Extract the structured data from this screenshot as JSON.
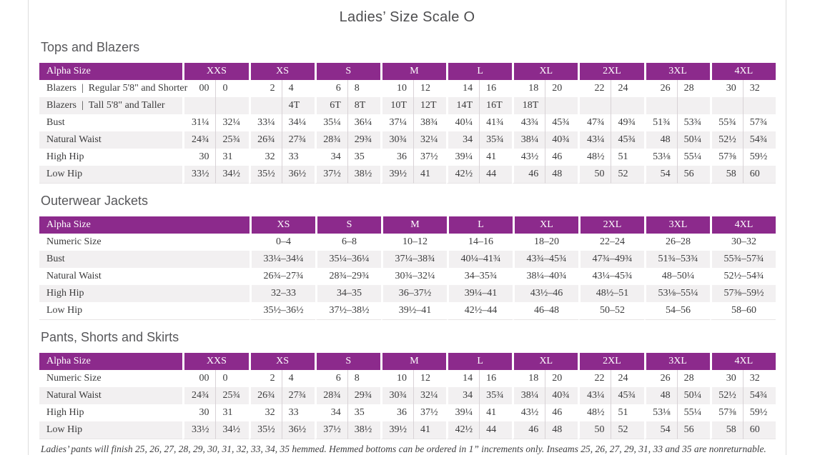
{
  "page": {
    "title": "Ladies’ Size Scale O",
    "footnote": "Ladies’ pants will finish 25, 26, 27, 28, 29, 30, 31, 32, 33, 34, 35 hemmed. Hemmed bottoms can be ordered in 1” increments only. Inseams 25, 26, 27, 29, 31, 33 and 35 are nonreturnable."
  },
  "colors": {
    "header_purple": "#8c2a8c",
    "alt_row_gray": "#f2f0f1"
  },
  "tables": [
    {
      "section": "Tops and Blazers",
      "header_label": "Alpha Size",
      "paired": true,
      "groups": [
        "XXS",
        "XS",
        "S",
        "M",
        "L",
        "XL",
        "2XL",
        "3XL",
        "4XL"
      ],
      "rows": [
        {
          "label": "Blazers | Regular 5'8\" and Shorter",
          "values": [
            "00",
            "0",
            "2",
            "4",
            "6",
            "8",
            "10",
            "12",
            "14",
            "16",
            "18",
            "20",
            "22",
            "24",
            "26",
            "28",
            "30",
            "32"
          ]
        },
        {
          "label": "Blazers | Tall 5'8\" and Taller",
          "values": [
            "",
            "",
            "",
            "4T",
            "6T",
            "8T",
            "10T",
            "12T",
            "14T",
            "16T",
            "18T",
            "",
            "",
            "",
            "",
            "",
            "",
            ""
          ]
        },
        {
          "label": "Bust",
          "values": [
            "31¼",
            "32¼",
            "33¼",
            "34¼",
            "35¼",
            "36¼",
            "37¼",
            "38¾",
            "40¼",
            "41¾",
            "43¾",
            "45¾",
            "47¾",
            "49¾",
            "51¾",
            "53¾",
            "55¾",
            "57¾"
          ]
        },
        {
          "label": "Natural Waist",
          "values": [
            "24¾",
            "25¾",
            "26¾",
            "27¾",
            "28¾",
            "29¾",
            "30¾",
            "32¼",
            "34",
            "35¾",
            "38¼",
            "40¾",
            "43¼",
            "45¾",
            "48",
            "50¼",
            "52½",
            "54¾"
          ]
        },
        {
          "label": "High Hip",
          "values": [
            "30",
            "31",
            "32",
            "33",
            "34",
            "35",
            "36",
            "37½",
            "39¼",
            "41",
            "43½",
            "46",
            "48½",
            "51",
            "53⅛",
            "55¼",
            "57⅜",
            "59½"
          ]
        },
        {
          "label": "Low Hip",
          "values": [
            "33½",
            "34½",
            "35½",
            "36½",
            "37½",
            "38½",
            "39½",
            "41",
            "42½",
            "44",
            "46",
            "48",
            "50",
            "52",
            "54",
            "56",
            "58",
            "60"
          ]
        }
      ]
    },
    {
      "section": "Outerwear Jackets",
      "header_label": "Alpha Size",
      "paired": false,
      "groups": [
        "XS",
        "S",
        "M",
        "L",
        "XL",
        "2XL",
        "3XL",
        "4XL"
      ],
      "rows": [
        {
          "label": "Numeric Size",
          "values": [
            "0–4",
            "6–8",
            "10–12",
            "14–16",
            "18–20",
            "22–24",
            "26–28",
            "30–32"
          ]
        },
        {
          "label": "Bust",
          "values": [
            "33¼–34¼",
            "35¼–36¼",
            "37¼–38¾",
            "40¼–41¾",
            "43¾–45¾",
            "47¾–49¾",
            "51¾–53¾",
            "55¾–57¾"
          ]
        },
        {
          "label": "Natural Waist",
          "values": [
            "26¾–27¾",
            "28¾–29¾",
            "30¾–32¼",
            "34–35¾",
            "38¼–40¾",
            "43¼–45¾",
            "48–50¼",
            "52½–54¾"
          ]
        },
        {
          "label": "High Hip",
          "values": [
            "32–33",
            "34–35",
            "36–37½",
            "39¼–41",
            "43½–46",
            "48½–51",
            "53⅛–55¼",
            "57⅜–59½"
          ]
        },
        {
          "label": "Low Hip",
          "values": [
            "35½–36½",
            "37½–38½",
            "39½–41",
            "42½–44",
            "46–48",
            "50–52",
            "54–56",
            "58–60"
          ]
        }
      ]
    },
    {
      "section": "Pants, Shorts and Skirts",
      "header_label": "Alpha Size",
      "paired": true,
      "groups": [
        "XXS",
        "XS",
        "S",
        "M",
        "L",
        "XL",
        "2XL",
        "3XL",
        "4XL"
      ],
      "rows": [
        {
          "label": "Numeric Size",
          "values": [
            "00",
            "0",
            "2",
            "4",
            "6",
            "8",
            "10",
            "12",
            "14",
            "16",
            "18",
            "20",
            "22",
            "24",
            "26",
            "28",
            "30",
            "32"
          ]
        },
        {
          "label": "Natural Waist",
          "values": [
            "24¾",
            "25¾",
            "26¾",
            "27¾",
            "28¾",
            "29¾",
            "30¾",
            "32¼",
            "34",
            "35¾",
            "38¼",
            "40¾",
            "43¼",
            "45¾",
            "48",
            "50¼",
            "52½",
            "54¾"
          ]
        },
        {
          "label": "High Hip",
          "values": [
            "30",
            "31",
            "32",
            "33",
            "34",
            "35",
            "36",
            "37½",
            "39¼",
            "41",
            "43½",
            "46",
            "48½",
            "51",
            "53⅛",
            "55¼",
            "57⅜",
            "59½"
          ]
        },
        {
          "label": "Low Hip",
          "values": [
            "33½",
            "34½",
            "35½",
            "36½",
            "37½",
            "38½",
            "39½",
            "41",
            "42½",
            "44",
            "46",
            "48",
            "50",
            "52",
            "54",
            "56",
            "58",
            "60"
          ]
        }
      ]
    }
  ]
}
